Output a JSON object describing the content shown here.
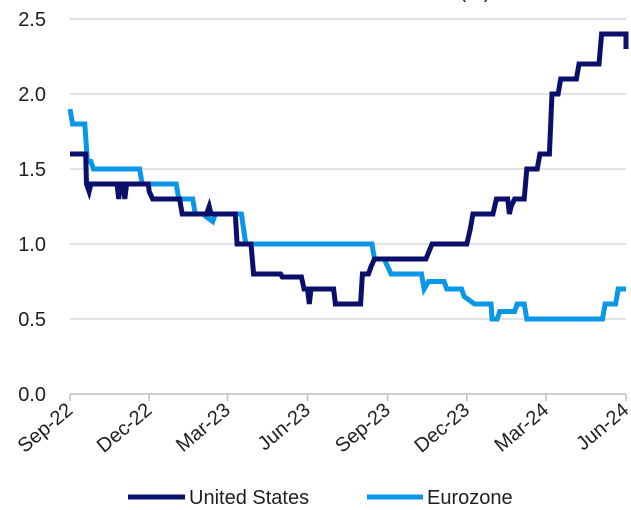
{
  "chart_data": {
    "type": "line",
    "title": "(%)",
    "x_tick_labels": [
      "Sep-22",
      "Dec-22",
      "Mar-23",
      "Jun-23",
      "Sep-23",
      "Dec-23",
      "Mar-24",
      "Jun-24"
    ],
    "y_tick_labels": [
      "0.0",
      "0.5",
      "1.0",
      "1.5",
      "2.0",
      "2.5"
    ],
    "ylim": [
      0,
      2.5
    ],
    "grid": true,
    "legend_position": "bottom",
    "series": [
      {
        "name": "United States",
        "color": "#0a0f6b",
        "points": [
          [
            "2022-09-01",
            1.6
          ],
          [
            "2022-09-19",
            1.6
          ],
          [
            "2022-09-20",
            1.4
          ],
          [
            "2022-09-23",
            1.35
          ],
          [
            "2022-09-25",
            1.4
          ],
          [
            "2022-10-25",
            1.4
          ],
          [
            "2022-10-27",
            1.3
          ],
          [
            "2022-10-29",
            1.4
          ],
          [
            "2022-11-01",
            1.4
          ],
          [
            "2022-11-03",
            1.3
          ],
          [
            "2022-11-05",
            1.4
          ],
          [
            "2022-11-30",
            1.4
          ],
          [
            "2022-12-01",
            1.35
          ],
          [
            "2022-12-05",
            1.3
          ],
          [
            "2023-01-05",
            1.3
          ],
          [
            "2023-01-08",
            1.2
          ],
          [
            "2023-02-05",
            1.2
          ],
          [
            "2023-02-08",
            1.25
          ],
          [
            "2023-02-10",
            1.2
          ],
          [
            "2023-03-10",
            1.2
          ],
          [
            "2023-03-12",
            1.0
          ],
          [
            "2023-03-28",
            1.0
          ],
          [
            "2023-03-31",
            0.8
          ],
          [
            "2023-05-01",
            0.8
          ],
          [
            "2023-05-03",
            0.78
          ],
          [
            "2023-05-25",
            0.78
          ],
          [
            "2023-05-28",
            0.7
          ],
          [
            "2023-06-01",
            0.7
          ],
          [
            "2023-06-03",
            0.6
          ],
          [
            "2023-06-05",
            0.7
          ],
          [
            "2023-07-01",
            0.7
          ],
          [
            "2023-07-03",
            0.6
          ],
          [
            "2023-08-01",
            0.6
          ],
          [
            "2023-08-03",
            0.8
          ],
          [
            "2023-08-10",
            0.8
          ],
          [
            "2023-08-13",
            0.85
          ],
          [
            "2023-08-17",
            0.9
          ],
          [
            "2023-10-15",
            0.9
          ],
          [
            "2023-10-22",
            1.0
          ],
          [
            "2023-12-01",
            1.0
          ],
          [
            "2023-12-05",
            1.1
          ],
          [
            "2023-12-08",
            1.2
          ],
          [
            "2023-12-31",
            1.2
          ],
          [
            "2024-01-04",
            1.3
          ],
          [
            "2024-01-17",
            1.3
          ],
          [
            "2024-01-19",
            1.2
          ],
          [
            "2024-01-21",
            1.25
          ],
          [
            "2024-01-25",
            1.3
          ],
          [
            "2024-02-05",
            1.3
          ],
          [
            "2024-02-08",
            1.5
          ],
          [
            "2024-02-20",
            1.5
          ],
          [
            "2024-02-23",
            1.6
          ],
          [
            "2024-03-05",
            1.6
          ],
          [
            "2024-03-08",
            2.0
          ],
          [
            "2024-03-15",
            2.0
          ],
          [
            "2024-03-18",
            2.1
          ],
          [
            "2024-04-05",
            2.1
          ],
          [
            "2024-04-08",
            2.2
          ],
          [
            "2024-05-01",
            2.2
          ],
          [
            "2024-05-04",
            2.4
          ],
          [
            "2024-06-25",
            2.4
          ],
          [
            "2024-06-28",
            2.3
          ],
          [
            "2024-06-30",
            2.3
          ]
        ]
      },
      {
        "name": "Eurozone",
        "color": "#0b97e8",
        "points": [
          [
            "2022-09-01",
            1.9
          ],
          [
            "2022-09-04",
            1.8
          ],
          [
            "2022-09-18",
            1.8
          ],
          [
            "2022-09-21",
            1.55
          ],
          [
            "2022-09-25",
            1.55
          ],
          [
            "2022-09-28",
            1.5
          ],
          [
            "2022-11-20",
            1.5
          ],
          [
            "2022-11-23",
            1.4
          ],
          [
            "2023-01-01",
            1.4
          ],
          [
            "2023-01-04",
            1.3
          ],
          [
            "2023-01-20",
            1.3
          ],
          [
            "2023-01-23",
            1.2
          ],
          [
            "2023-02-01",
            1.2
          ],
          [
            "2023-02-05",
            1.18
          ],
          [
            "2023-02-12",
            1.15
          ],
          [
            "2023-02-15",
            1.2
          ],
          [
            "2023-03-01",
            1.2
          ],
          [
            "2023-03-17",
            1.2
          ],
          [
            "2023-03-22",
            1.0
          ],
          [
            "2023-08-14",
            1.0
          ],
          [
            "2023-08-17",
            0.9
          ],
          [
            "2023-08-28",
            0.9
          ],
          [
            "2023-09-01",
            0.85
          ],
          [
            "2023-09-05",
            0.8
          ],
          [
            "2023-10-10",
            0.8
          ],
          [
            "2023-10-13",
            0.7
          ],
          [
            "2023-10-18",
            0.75
          ],
          [
            "2023-11-05",
            0.75
          ],
          [
            "2023-11-08",
            0.7
          ],
          [
            "2023-11-25",
            0.7
          ],
          [
            "2023-11-28",
            0.65
          ],
          [
            "2023-12-10",
            0.6
          ],
          [
            "2023-12-29",
            0.6
          ],
          [
            "2023-12-30",
            0.5
          ],
          [
            "2024-01-05",
            0.5
          ],
          [
            "2024-01-08",
            0.55
          ],
          [
            "2024-01-25",
            0.55
          ],
          [
            "2024-01-28",
            0.6
          ],
          [
            "2024-02-05",
            0.6
          ],
          [
            "2024-02-08",
            0.5
          ],
          [
            "2024-05-05",
            0.5
          ],
          [
            "2024-05-08",
            0.6
          ],
          [
            "2024-05-20",
            0.6
          ],
          [
            "2024-05-23",
            0.7
          ],
          [
            "2024-06-30",
            0.7
          ]
        ]
      }
    ]
  }
}
